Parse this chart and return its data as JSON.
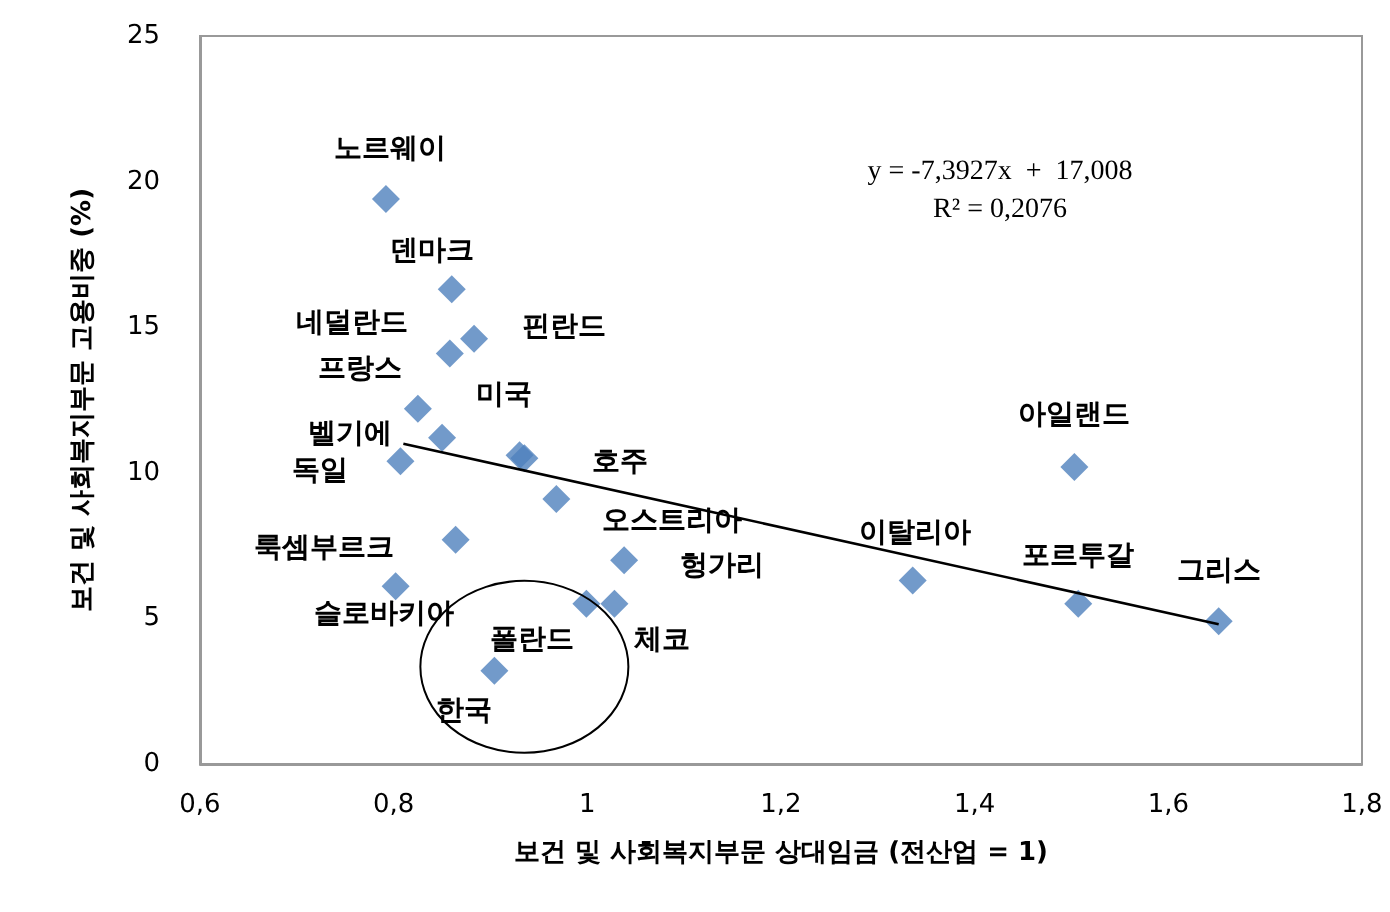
{
  "chart_data": {
    "type": "scatter",
    "xlabel": "보건 및 사회복지부문 상대임금 (전산업 = 1)",
    "ylabel": "보건 및 사회복지부문 고용비중 (%)",
    "series": [
      {
        "color": "#4f81bd",
        "marker": "diamond",
        "x": [
          0.792,
          0.86,
          0.858,
          0.883,
          0.825,
          0.85,
          0.807,
          0.93,
          0.935,
          0.968,
          0.864,
          1.038,
          0.802,
          0.999,
          1.028,
          0.904,
          1.503,
          1.336,
          1.507,
          1.652
        ],
        "values": [
          19.4,
          16.3,
          14.1,
          14.6,
          12.2,
          11.2,
          10.4,
          10.6,
          10.5,
          9.1,
          7.7,
          7.0,
          6.1,
          5.5,
          5.5,
          3.2,
          10.2,
          6.3,
          5.5,
          4.9
        ]
      },
      {
        "type": "line",
        "color": "#000000",
        "marker": "none",
        "line_style": "solid",
        "x": [
          0.81,
          1.652
        ],
        "values": [
          11.0,
          4.8
        ]
      }
    ],
    "annotations": [
      {
        "text": "노르웨이",
        "x": 0.792,
        "y": 19.4
      },
      {
        "text": "덴마크",
        "x": 0.86,
        "y": 16.3
      },
      {
        "text": "네덜란드",
        "x": 0.858,
        "y": 14.1
      },
      {
        "text": "핀란드",
        "x": 0.883,
        "y": 14.6
      },
      {
        "text": "프랑스",
        "x": 0.825,
        "y": 12.2
      },
      {
        "text": "벨기에",
        "x": 0.85,
        "y": 11.2
      },
      {
        "text": "독일",
        "x": 0.807,
        "y": 10.4
      },
      {
        "text": "미국",
        "x": 0.93,
        "y": 10.6
      },
      {
        "text": "호주",
        "x": 0.935,
        "y": 10.5
      },
      {
        "text": "오스트리아",
        "x": 0.968,
        "y": 9.1
      },
      {
        "text": "룩셈부르크",
        "x": 0.864,
        "y": 7.7
      },
      {
        "text": "헝가리",
        "x": 1.038,
        "y": 7.0
      },
      {
        "text": "슬로바키아",
        "x": 0.802,
        "y": 6.1
      },
      {
        "text": "폴란드",
        "x": 0.999,
        "y": 5.5
      },
      {
        "text": "체코",
        "x": 1.028,
        "y": 5.5
      },
      {
        "text": "한국",
        "x": 0.904,
        "y": 3.2
      },
      {
        "text": "아일랜드",
        "x": 1.503,
        "y": 10.2
      },
      {
        "text": "이탈리아",
        "x": 1.336,
        "y": 6.3
      },
      {
        "text": "포르투갈",
        "x": 1.507,
        "y": 5.5
      },
      {
        "text": "그리스",
        "x": 1.652,
        "y": 4.9
      },
      "y = -7,3927x  +  17,008",
      "R² = 0,2076"
    ],
    "xlim": [
      0.6,
      1.8
    ],
    "xticks": [
      {
        "value": 0.6,
        "label": "0,6"
      },
      {
        "value": 0.8,
        "label": "0,8"
      },
      1,
      {
        "value": 1.2,
        "label": "1,2"
      },
      {
        "value": 1.4,
        "label": "1,4"
      },
      {
        "value": 1.6,
        "label": "1,6"
      },
      {
        "value": 1.8,
        "label": "1,8"
      }
    ],
    "ylim": [
      0,
      25
    ],
    "yticks": [
      0,
      5,
      10,
      15,
      20,
      25
    ],
    "grid": false
  }
}
